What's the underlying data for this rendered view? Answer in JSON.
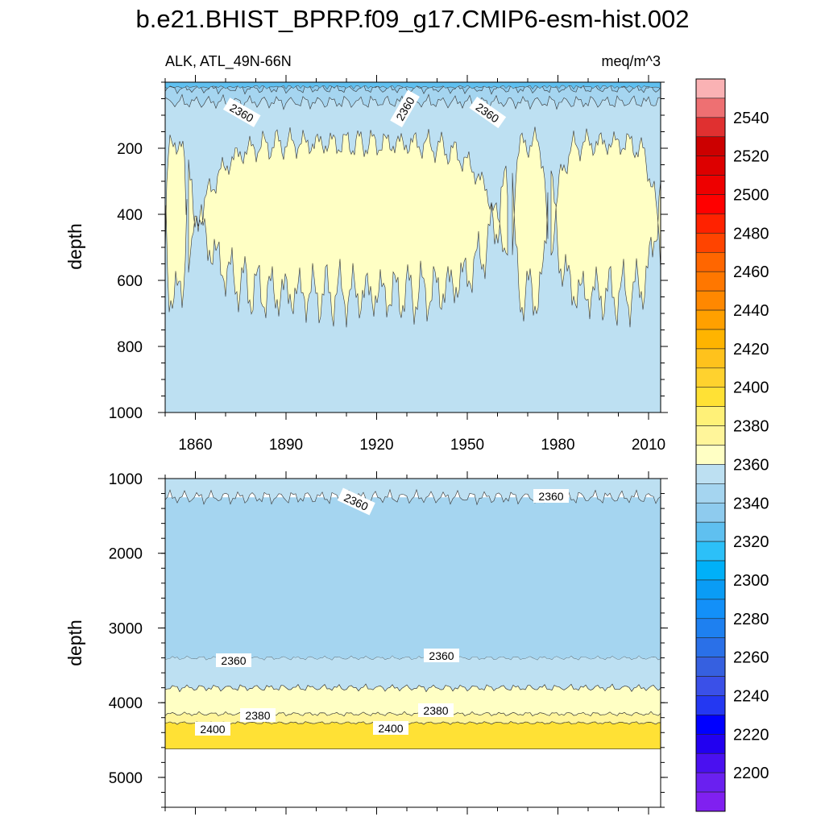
{
  "chart_data": [
    {
      "type": "heatmap",
      "title": "b.e21.BHIST_BPRP.f09_g17.CMIP6-esm-hist.002",
      "left_label": "ALK, ATL_49N-66N",
      "right_label": "meq/m^3",
      "ylabel": "depth",
      "xlim": [
        1850,
        2014
      ],
      "ylim": [
        1000,
        0
      ],
      "x_ticks": [
        "1860",
        "1890",
        "1920",
        "1950",
        "1980",
        "2010"
      ],
      "y_ticks": [
        "200",
        "400",
        "600",
        "800",
        "1000"
      ],
      "contour_labels": [
        "2360",
        "2360",
        "2360"
      ],
      "bands": [
        {
          "level": 2360,
          "color": "#bde0f2",
          "top": 0,
          "bottom": 1000
        },
        {
          "level": 2340,
          "color": "#8ecbee",
          "top": 0,
          "bottom": 20
        },
        {
          "level": 2350,
          "color": "#a5d5f0",
          "top": 20,
          "bottom": 60
        },
        {
          "level": 2370,
          "color": "#ffffc4",
          "top": 185,
          "bottom": 640
        }
      ]
    },
    {
      "type": "heatmap",
      "ylabel": "depth",
      "xlim": [
        1850,
        2014
      ],
      "ylim": [
        5400,
        1000
      ],
      "y_ticks": [
        "1000",
        "2000",
        "3000",
        "4000",
        "5000"
      ],
      "contour_labels": [
        "2360",
        "2360",
        "2360",
        "2360",
        "2380",
        "2380",
        "2400",
        "2400"
      ],
      "bands": [
        {
          "level": 2350,
          "color": "#a5d5f0",
          "top": 1250,
          "bottom": 3400
        },
        {
          "level": 2360,
          "color": "#bde0f2",
          "top": 1000,
          "bottom": 1250
        },
        {
          "level": 2360,
          "color": "#bde0f2",
          "top": 3400,
          "bottom": 3800
        },
        {
          "level": 2370,
          "color": "#ffffc4",
          "top": 3800,
          "bottom": 4150
        },
        {
          "level": 2380,
          "color": "#fff59a",
          "top": 4150,
          "bottom": 4270
        },
        {
          "level": 2390,
          "color": "#ffe135",
          "top": 4270,
          "bottom": 4620
        }
      ]
    }
  ],
  "colorbar": {
    "labels": [
      "2540",
      "2520",
      "2500",
      "2480",
      "2460",
      "2440",
      "2420",
      "2400",
      "2380",
      "2360",
      "2340",
      "2320",
      "2300",
      "2280",
      "2260",
      "2240",
      "2220",
      "2200"
    ],
    "colors": [
      "#fab2b4",
      "#ee7072",
      "#e03030",
      "#cc0000",
      "#dd0000",
      "#ee0000",
      "#ff0000",
      "#ff2200",
      "#ff4400",
      "#ff6600",
      "#ff7700",
      "#ff8800",
      "#ffa000",
      "#ffb400",
      "#ffc21c",
      "#ffd22e",
      "#ffe135",
      "#fff178",
      "#fff59a",
      "#ffffc4",
      "#bde0f2",
      "#a5d5f0",
      "#8ecbee",
      "#5fc0f0",
      "#2cc0f8",
      "#00b0f8",
      "#0a9cf5",
      "#1390f8",
      "#1e80f0",
      "#2a70e8",
      "#3660e0",
      "#3a50e8",
      "#2438f2",
      "#0000ff",
      "#2200f0",
      "#4a10f0",
      "#6a20f0",
      "#8020f0"
    ]
  }
}
